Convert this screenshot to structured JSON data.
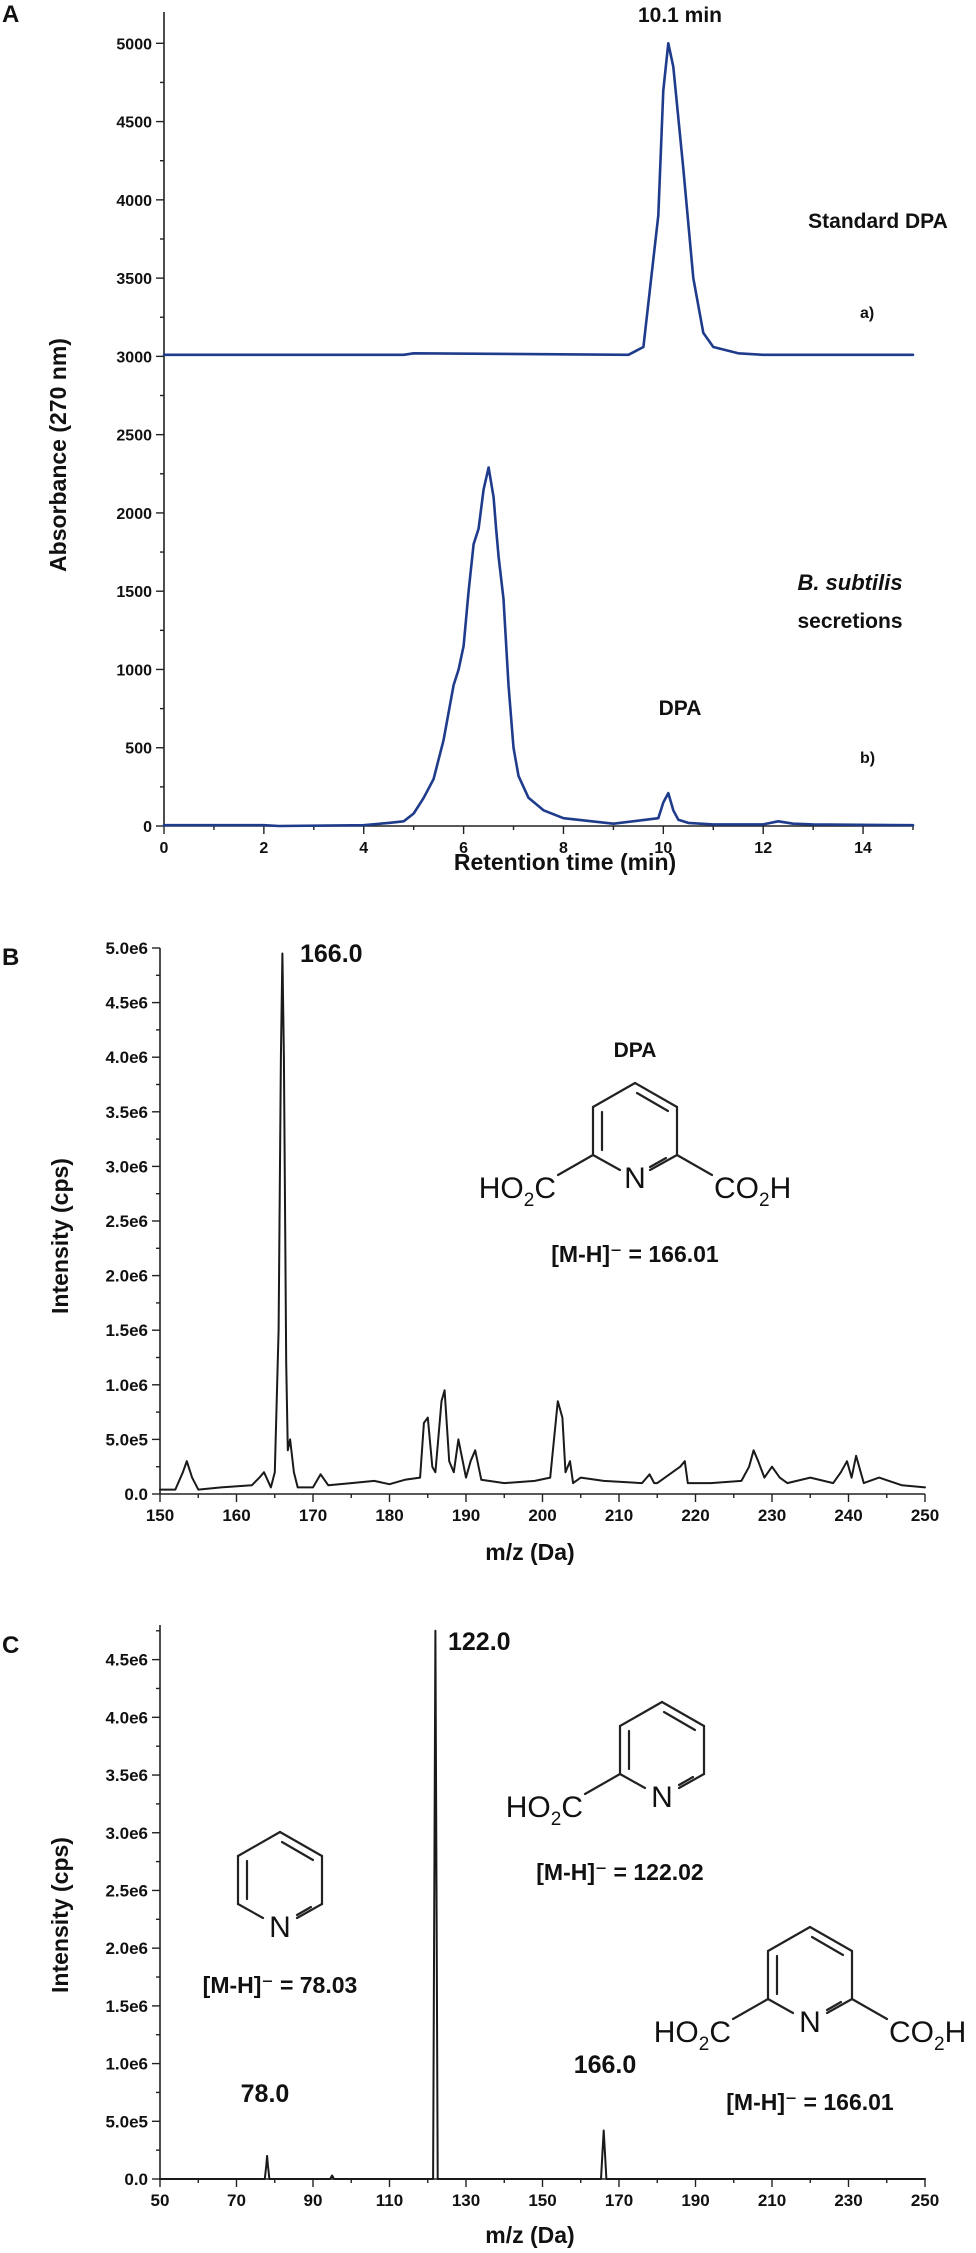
{
  "panels": {
    "A": {
      "letter": "A",
      "annotations": {
        "peak_time": "10.1 min",
        "standard": "Standard DPA",
        "trace_a": "a)",
        "organism": "B. subtilis",
        "secretions": "secretions",
        "dpa": "DPA",
        "trace_b": "b)"
      }
    },
    "B": {
      "letter": "B",
      "annotations": {
        "peak": "166.0",
        "compound": "DPA"
      },
      "structure": {
        "left_group": "HO",
        "left_sub": "2",
        "left_end": "C",
        "ring_n": "N",
        "right_group": "CO",
        "right_sub": "2",
        "right_end": "H",
        "mh": "[M-H]⁻ = 166.01"
      }
    },
    "C": {
      "letter": "C",
      "annotations": {
        "peak_122": "122.0",
        "peak_78": "78.0",
        "peak_166": "166.0"
      },
      "pyridine": {
        "ring_n": "N",
        "mh": "[M-H]⁻ = 78.03"
      },
      "picolinic": {
        "left_group": "HO",
        "left_sub": "2",
        "left_end": "C",
        "ring_n": "N",
        "mh": "[M-H]⁻ = 122.02"
      },
      "dpa": {
        "left_group": "HO",
        "left_sub": "2",
        "left_end": "C",
        "ring_n": "N",
        "right_group": "CO",
        "right_sub": "2",
        "right_end": "H",
        "mh": "[M-H]⁻ = 166.01"
      }
    }
  },
  "chart_data": [
    {
      "type": "line",
      "panel": "A",
      "xlabel": "Retention time (min)",
      "ylabel": "Absorbance (270 nm)",
      "xlim": [
        0,
        15
      ],
      "ylim": [
        0,
        5200
      ],
      "x_ticks": [
        0,
        2,
        4,
        6,
        8,
        10,
        12,
        14
      ],
      "y_ticks": [
        0,
        500,
        1000,
        1500,
        2000,
        2500,
        3000,
        3500,
        4000,
        4500,
        5000
      ],
      "line_color": "#1f3c8c",
      "series": [
        {
          "x": [
            0,
            4.8,
            5.0,
            9.3,
            9.6,
            9.9,
            10.0,
            10.1,
            10.2,
            10.4,
            10.6,
            10.8,
            11.0,
            11.5,
            12,
            15
          ],
          "y": [
            3010,
            3010,
            3020,
            3010,
            3060,
            3900,
            4700,
            5000,
            4850,
            4200,
            3500,
            3150,
            3060,
            3020,
            3010,
            3010
          ]
        },
        {
          "x": [
            0,
            2.0,
            2.3,
            4.0,
            4.5,
            4.8,
            5.0,
            5.2,
            5.4,
            5.6,
            5.8,
            5.9,
            6.0,
            6.1,
            6.2,
            6.3,
            6.4,
            6.5,
            6.6,
            6.65,
            6.7,
            6.8,
            6.9,
            7.0,
            7.1,
            7.3,
            7.6,
            8.0,
            9.0,
            9.9,
            10.0,
            10.1,
            10.2,
            10.3,
            10.5,
            11.0,
            12.0,
            12.3,
            12.6,
            13.0,
            15.0
          ],
          "y": [
            5,
            5,
            0,
            5,
            20,
            30,
            80,
            180,
            300,
            550,
            900,
            1000,
            1150,
            1500,
            1800,
            1900,
            2150,
            2290,
            2100,
            1900,
            1720,
            1450,
            900,
            500,
            320,
            180,
            100,
            50,
            15,
            50,
            150,
            210,
            100,
            40,
            20,
            10,
            10,
            30,
            15,
            10,
            5
          ]
        }
      ]
    },
    {
      "type": "line",
      "panel": "B",
      "xlabel": "m/z (Da)",
      "ylabel": "Intensity (cps)",
      "xlim": [
        150,
        250
      ],
      "ylim": [
        0,
        5000000
      ],
      "x_ticks": [
        150,
        160,
        170,
        180,
        190,
        200,
        210,
        220,
        230,
        240,
        250
      ],
      "y_ticks": [
        "0.0",
        "5.0e5",
        "1.0e6",
        "1.5e6",
        "2.0e6",
        "2.5e6",
        "3.0e6",
        "3.5e6",
        "4.0e6",
        "4.5e6",
        "5.0e6"
      ],
      "line_color": "#1a1a1a",
      "series": [
        {
          "x": [
            150,
            152,
            153,
            153.5,
            154.2,
            155,
            158,
            162,
            163,
            163.6,
            164.5,
            165,
            165.5,
            165.8,
            166.0,
            166.2,
            166.5,
            166.7,
            167.0,
            167.5,
            168,
            170,
            171,
            172,
            175,
            178,
            180,
            182,
            184,
            184.5,
            185,
            185.6,
            186,
            186.8,
            187.2,
            187.8,
            188.4,
            189,
            190,
            190.6,
            191.2,
            192,
            195,
            199,
            201,
            201.5,
            202,
            202.6,
            203,
            203.6,
            204,
            205,
            208,
            213,
            214,
            214.6,
            215,
            218,
            218.6,
            219,
            222,
            226,
            227,
            227.6,
            228.2,
            229,
            230,
            231,
            232,
            235,
            238,
            239,
            239.8,
            240.4,
            241,
            241.6,
            242,
            244,
            247,
            250
          ],
          "y": [
            40000,
            40000,
            200000,
            300000,
            150000,
            40000,
            60000,
            80000,
            150000,
            200000,
            60000,
            200000,
            1500000,
            4000000,
            4950000,
            4000000,
            1200000,
            400000,
            500000,
            200000,
            60000,
            60000,
            180000,
            80000,
            100000,
            120000,
            90000,
            130000,
            150000,
            650000,
            700000,
            250000,
            200000,
            850000,
            950000,
            300000,
            200000,
            500000,
            150000,
            300000,
            400000,
            130000,
            100000,
            120000,
            150000,
            500000,
            850000,
            700000,
            200000,
            300000,
            100000,
            150000,
            120000,
            100000,
            180000,
            100000,
            100000,
            250000,
            300000,
            100000,
            100000,
            120000,
            250000,
            400000,
            300000,
            150000,
            250000,
            150000,
            100000,
            150000,
            100000,
            200000,
            300000,
            150000,
            350000,
            200000,
            100000,
            150000,
            80000,
            60000
          ]
        }
      ]
    },
    {
      "type": "line",
      "panel": "C",
      "xlabel": "m/z (Da)",
      "ylabel": "Intensity (cps)",
      "xlim": [
        50,
        250
      ],
      "ylim": [
        0,
        4800000
      ],
      "x_ticks": [
        50,
        70,
        90,
        110,
        130,
        150,
        170,
        190,
        210,
        230,
        250
      ],
      "y_ticks": [
        "0.0",
        "5.0e5",
        "1.0e6",
        "1.5e6",
        "2.0e6",
        "2.5e6",
        "3.0e6",
        "3.5e6",
        "4.0e6",
        "4.5e6"
      ],
      "line_color": "#1a1a1a",
      "series": [
        {
          "x": [
            50,
            77.4,
            77.8,
            78.0,
            78.2,
            78.6,
            94.5,
            95,
            95.5,
            121.4,
            121.7,
            122.0,
            122.3,
            122.6,
            165.3,
            165.7,
            166.0,
            166.3,
            166.7,
            250
          ],
          "y": [
            0,
            0,
            120000,
            200000,
            120000,
            0,
            0,
            30000,
            0,
            0,
            2500000,
            4750000,
            2500000,
            0,
            0,
            250000,
            420000,
            250000,
            0,
            0
          ]
        }
      ]
    }
  ]
}
